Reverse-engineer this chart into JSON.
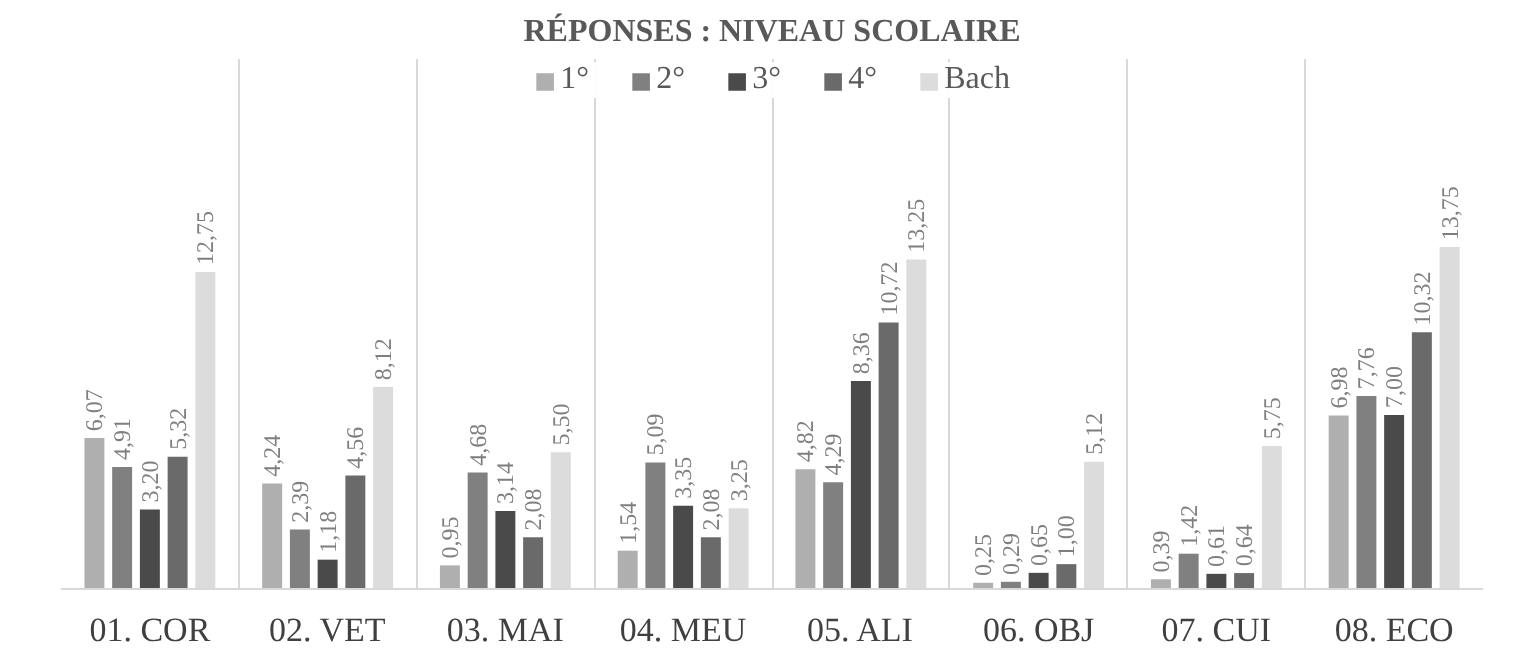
{
  "chart_data": {
    "type": "bar",
    "title": "RÉPONSES : NIVEAU SCOLAIRE",
    "categories": [
      "01. COR",
      "02. VET",
      "03. MAI",
      "04. MEU",
      "05. ALI",
      "06. OBJ",
      "07. CUI",
      "08. ECO"
    ],
    "series": [
      {
        "name": "1°",
        "color": "#afafaf",
        "values": [
          6.07,
          4.24,
          0.95,
          1.54,
          4.82,
          0.25,
          0.39,
          6.98
        ],
        "value_labels": [
          "6,07",
          "4,24",
          "0,95",
          "1,54",
          "4,82",
          "0,25",
          "0,39",
          "6,98"
        ]
      },
      {
        "name": "2°",
        "color": "#808080",
        "values": [
          4.91,
          2.39,
          4.68,
          5.09,
          4.29,
          0.29,
          1.42,
          7.76
        ],
        "value_labels": [
          "4,91",
          "2,39",
          "4,68",
          "5,09",
          "4,29",
          "0,29",
          "1,42",
          "7,76"
        ]
      },
      {
        "name": "3°",
        "color": "#4a4a4a",
        "values": [
          3.2,
          1.18,
          3.14,
          3.35,
          8.36,
          0.65,
          0.61,
          7.0
        ],
        "value_labels": [
          "3,20",
          "1,18",
          "3,14",
          "3,35",
          "8,36",
          "0,65",
          "0,61",
          "7,00"
        ]
      },
      {
        "name": "4°",
        "color": "#6a6a6a",
        "values": [
          5.32,
          4.56,
          2.08,
          2.08,
          10.72,
          1.0,
          0.64,
          10.32
        ],
        "value_labels": [
          "5,32",
          "4,56",
          "2,08",
          "2,08",
          "10,72",
          "1,00",
          "0,64",
          "10,32"
        ]
      },
      {
        "name": "Bach",
        "color": "#dcdcdc",
        "values": [
          12.75,
          8.12,
          5.5,
          3.25,
          13.25,
          5.12,
          5.75,
          13.75
        ],
        "value_labels": [
          "12,75",
          "8,12",
          "5,50",
          "3,25",
          "13,25",
          "5,12",
          "5,75",
          "13,75"
        ]
      }
    ],
    "legend": "top"
  }
}
